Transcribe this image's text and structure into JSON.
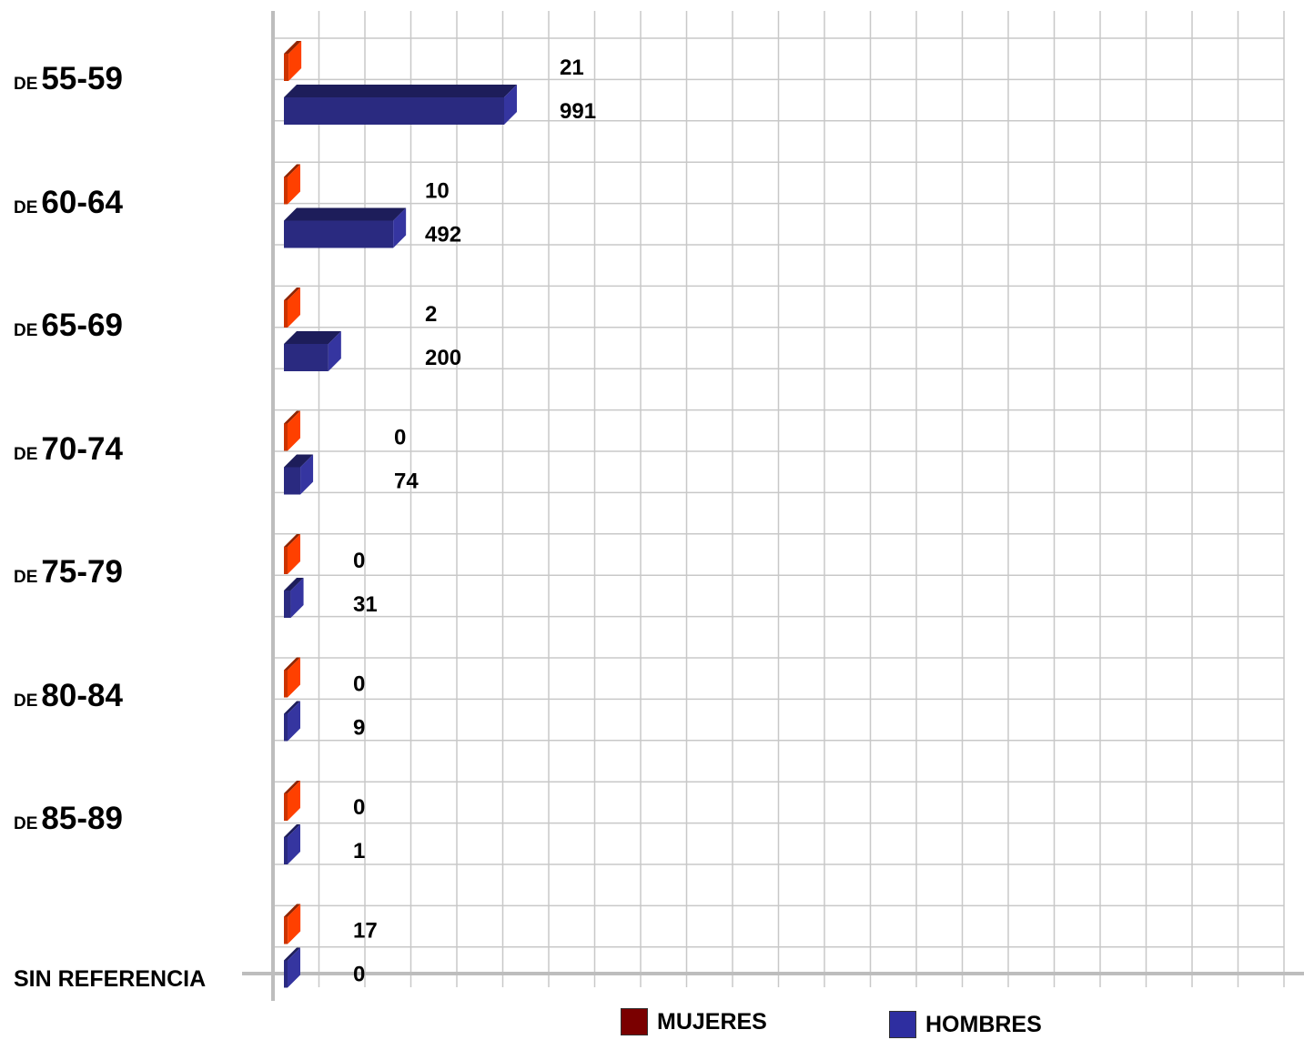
{
  "chart_data": {
    "type": "bar",
    "orientation": "horizontal",
    "categories": [
      {
        "prefix": "DE",
        "range": "55-59"
      },
      {
        "prefix": "DE",
        "range": "60-64"
      },
      {
        "prefix": "DE",
        "range": "65-69"
      },
      {
        "prefix": "DE",
        "range": "70-74"
      },
      {
        "prefix": "DE",
        "range": "75-79"
      },
      {
        "prefix": "DE",
        "range": "80-84"
      },
      {
        "prefix": "DE",
        "range": "85-89"
      },
      {
        "prefix": "",
        "range": "SIN REFERENCIA"
      }
    ],
    "series": [
      {
        "name": "MUJERES",
        "color": "#cc3300",
        "legend_color": "#7a0000",
        "values": [
          21,
          10,
          2,
          0,
          0,
          0,
          0,
          17
        ]
      },
      {
        "name": "HOMBRES",
        "color": "#2a2a80",
        "legend_color": "#2e2ea0",
        "values": [
          991,
          492,
          200,
          74,
          31,
          9,
          1,
          0
        ]
      }
    ],
    "legend_position": "bottom",
    "grid": true
  }
}
